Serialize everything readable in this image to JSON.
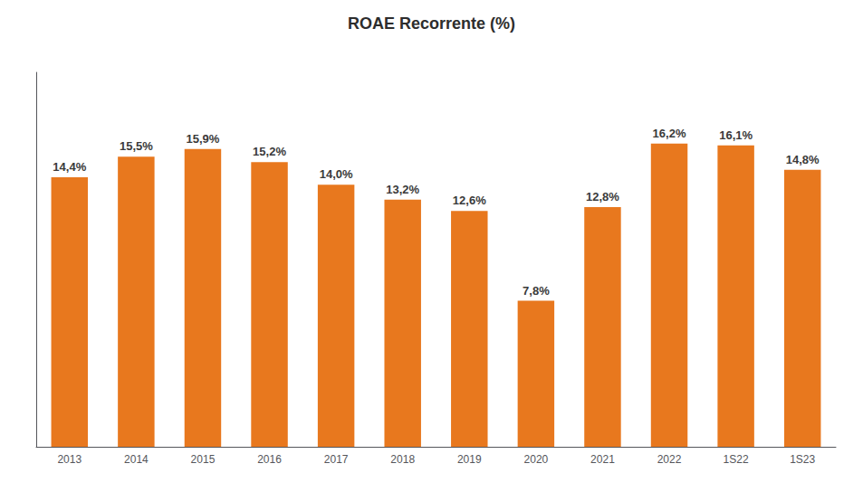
{
  "chart_data": {
    "type": "bar",
    "title": "ROAE Recorrente (%)",
    "categories": [
      "2013",
      "2014",
      "2015",
      "2016",
      "2017",
      "2018",
      "2019",
      "2020",
      "2021",
      "2022",
      "1S22",
      "1S23"
    ],
    "values": [
      14.4,
      15.5,
      15.9,
      15.2,
      14.0,
      13.2,
      12.6,
      7.8,
      12.8,
      16.2,
      16.1,
      14.8
    ],
    "value_labels": [
      "14,4%",
      "15,5%",
      "15,9%",
      "15,2%",
      "14,0%",
      "13,2%",
      "12,6%",
      "7,8%",
      "12,8%",
      "16,2%",
      "16,1%",
      "14,8%"
    ],
    "color": "#E8781E",
    "ylim": [
      0,
      20
    ],
    "grid": false,
    "data_labels": true,
    "tick_labels": "x"
  }
}
